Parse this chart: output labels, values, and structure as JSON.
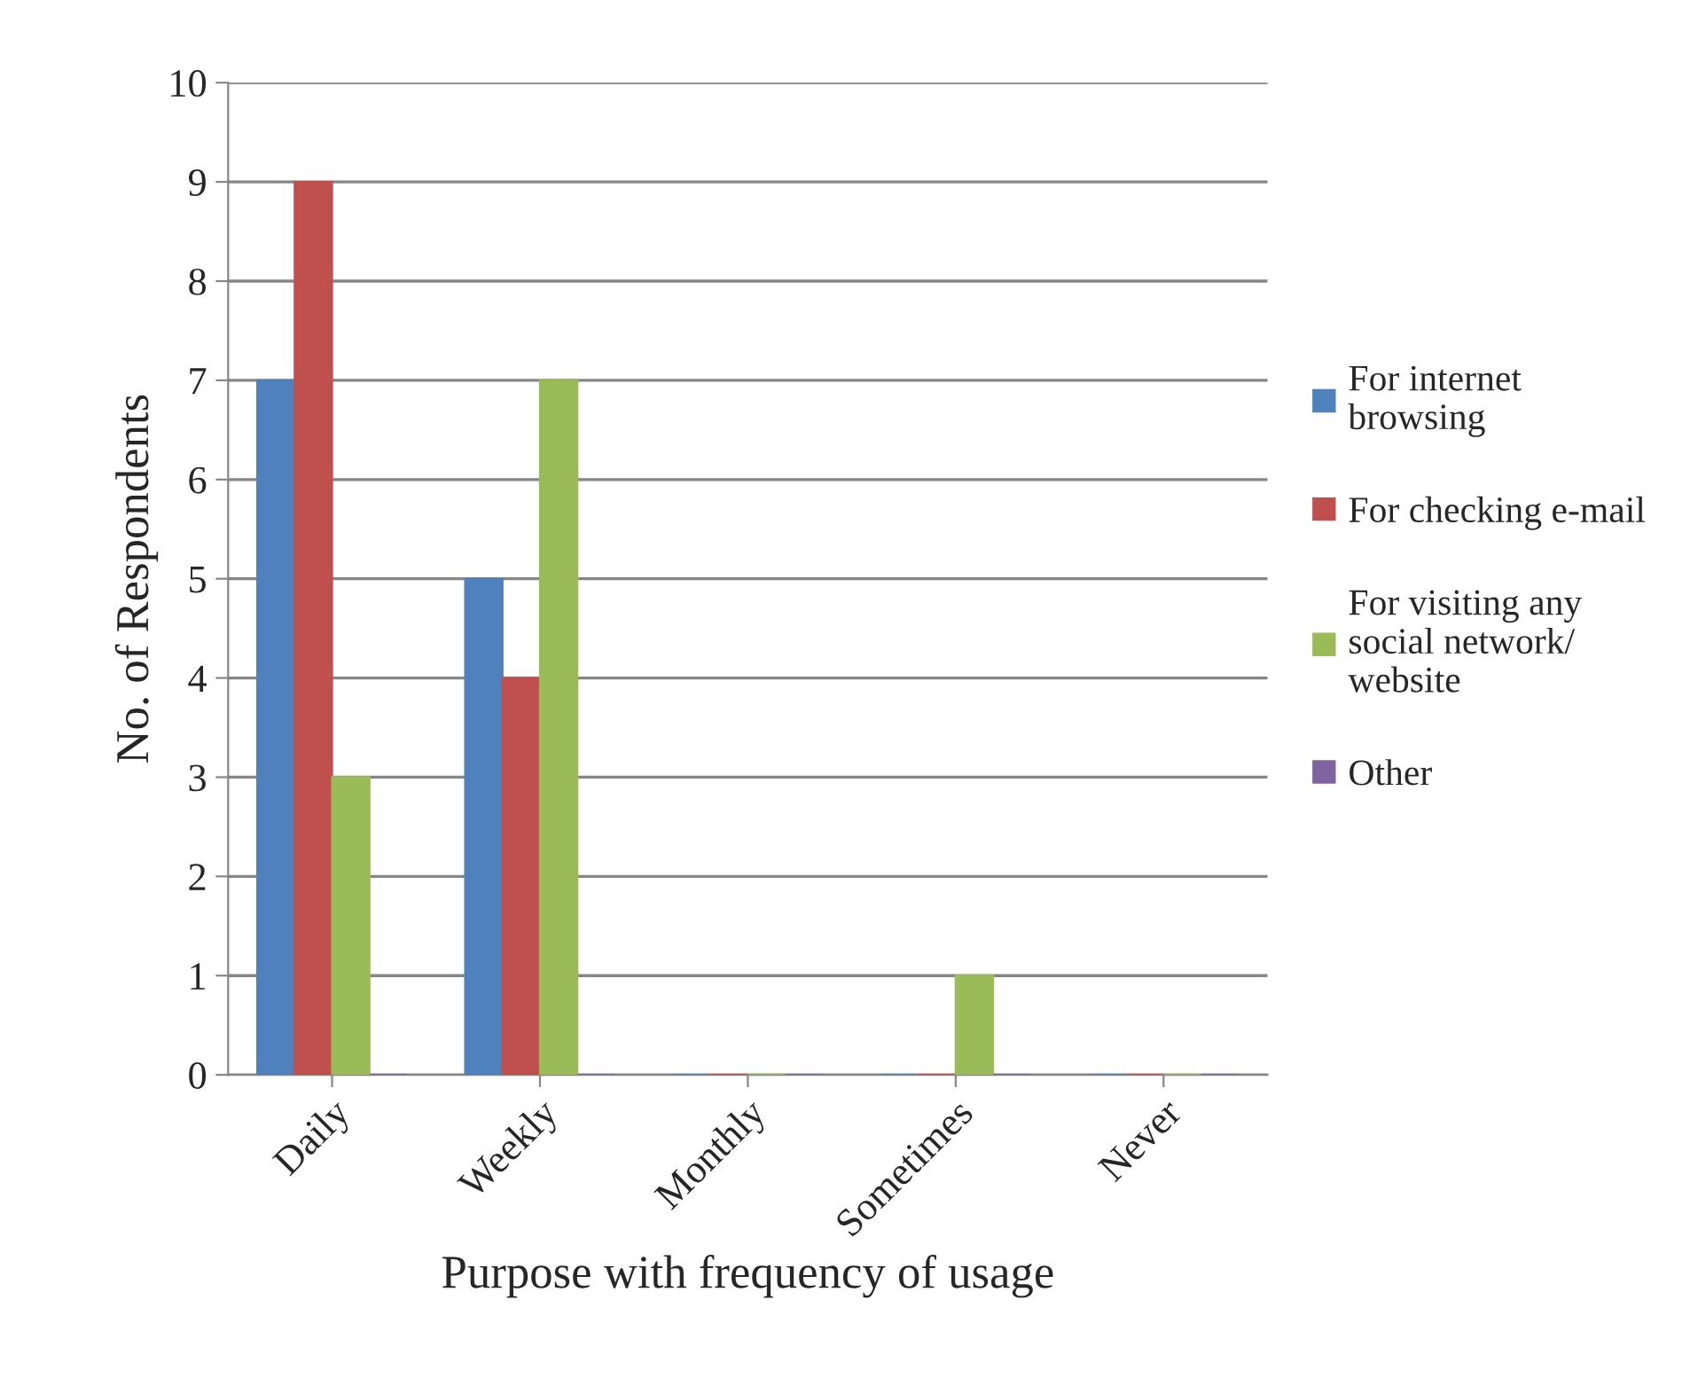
{
  "chart_data": {
    "type": "bar",
    "xlabel": "Purpose with frequency of usage",
    "ylabel": "No. of Respondents",
    "categories": [
      "Daily",
      "Weekly",
      "Monthly",
      "Sometimes",
      "Never"
    ],
    "series": [
      {
        "name": "For internet browsing",
        "color": "#4f81bd",
        "values": [
          7,
          5,
          0,
          0,
          0
        ]
      },
      {
        "name": "For checking e-mail",
        "color": "#c0504d",
        "values": [
          9,
          4,
          0,
          0,
          0
        ]
      },
      {
        "name": "For visiting any social network/ website",
        "color": "#9bbb59",
        "values": [
          3,
          7,
          0,
          1,
          0
        ]
      },
      {
        "name": "Other",
        "color": "#8064a2",
        "values": [
          0,
          0,
          0,
          0,
          0
        ]
      }
    ],
    "ylim": [
      0,
      10
    ],
    "yticks": [
      0,
      1,
      2,
      3,
      4,
      5,
      6,
      7,
      8,
      9,
      10
    ],
    "grid": "y",
    "legend": "right"
  }
}
